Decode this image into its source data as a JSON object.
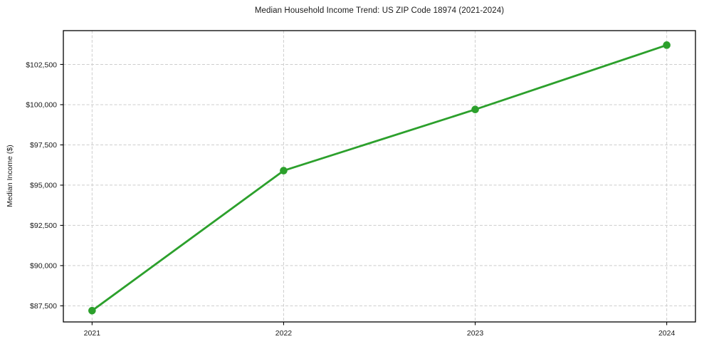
{
  "chart_data": {
    "type": "line",
    "title": "Median Household Income Trend: US ZIP Code 18974 (2021-2024)",
    "xlabel": "",
    "ylabel": "Median Income ($)",
    "x": [
      2021,
      2022,
      2023,
      2024
    ],
    "x_tick_labels": [
      "2021",
      "2022",
      "2023",
      "2024"
    ],
    "series": [
      {
        "name": "Median Household Income",
        "values": [
          87200,
          95900,
          99700,
          103700
        ]
      }
    ],
    "y_ticks": [
      87500,
      90000,
      92500,
      95000,
      97500,
      100000,
      102500
    ],
    "y_tick_labels": [
      "$87,500",
      "$90,000",
      "$92,500",
      "$95,000",
      "$97,500",
      "$100,000",
      "$102,500"
    ],
    "xlim": [
      2020.85,
      2024.15
    ],
    "ylim": [
      86500,
      104600
    ],
    "grid": true,
    "grid_style": "dashed",
    "legend": "none",
    "colors": {
      "line": "#2ca02c",
      "marker": "#2ca02c",
      "grid": "#cdcdcd",
      "axis": "#000000",
      "text": "#1a1a1a",
      "background": "#ffffff"
    }
  }
}
